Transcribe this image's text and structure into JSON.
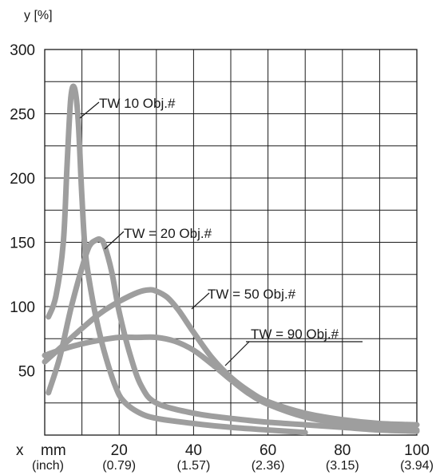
{
  "chart_data": {
    "type": "line",
    "title": "",
    "ylabel": "y [%]",
    "xlabel_axis_letter": "x",
    "xlabel_unit_primary": "mm",
    "xlabel_unit_secondary": "(inch)",
    "xlim": [
      0,
      100
    ],
    "ylim": [
      0,
      300
    ],
    "grid": true,
    "legend": "none",
    "line_color": "#9e9e9e",
    "y_ticks": [
      50,
      100,
      150,
      200,
      250,
      300
    ],
    "x_ticks": [
      {
        "value": 20,
        "mm": "20",
        "inch": "(0.79)"
      },
      {
        "value": 40,
        "mm": "40",
        "inch": "(1.57)"
      },
      {
        "value": 60,
        "mm": "60",
        "inch": "(2.36)"
      },
      {
        "value": 80,
        "mm": "80",
        "inch": "(3.15)"
      },
      {
        "value": 100,
        "mm": "100",
        "inch": "(3.94)"
      }
    ],
    "series": [
      {
        "label": "TW 10 Obj.#",
        "x": [
          1,
          3,
          5,
          6,
          7,
          8,
          9,
          10,
          11,
          13,
          15,
          17,
          19,
          21,
          25,
          30,
          40,
          50,
          60,
          70
        ],
        "y": [
          92,
          108,
          150,
          210,
          262,
          270,
          245,
          185,
          140,
          103,
          76,
          55,
          38,
          27,
          18,
          13,
          9,
          6,
          4,
          2
        ]
      },
      {
        "label": "TW = 20 Obj.#",
        "x": [
          1,
          4,
          7,
          10,
          12,
          14,
          15,
          16,
          18,
          20,
          23,
          26,
          30,
          40,
          50,
          60,
          70,
          80,
          90,
          100
        ],
        "y": [
          33,
          60,
          98,
          130,
          147,
          152,
          152,
          148,
          127,
          96,
          62,
          38,
          25,
          17,
          13,
          10,
          8,
          6,
          4,
          3
        ]
      },
      {
        "label": "TW = 50 Obj.#",
        "x": [
          0,
          5,
          10,
          15,
          20,
          25,
          28,
          30,
          33,
          36,
          40,
          45,
          50,
          55,
          60,
          70,
          80,
          90,
          100
        ],
        "y": [
          57,
          70,
          83,
          95,
          104,
          111,
          113,
          112,
          107,
          97,
          80,
          60,
          45,
          34,
          26,
          17,
          12,
          9,
          8
        ]
      },
      {
        "label": "TW = 90 Obj.#",
        "x": [
          0,
          5,
          10,
          15,
          20,
          25,
          30,
          35,
          40,
          45,
          50,
          55,
          60,
          70,
          80,
          90,
          100
        ],
        "y": [
          62,
          67,
          71,
          74,
          76,
          76,
          76,
          73,
          66,
          55,
          43,
          32,
          24,
          14,
          9,
          6,
          4
        ]
      }
    ]
  }
}
